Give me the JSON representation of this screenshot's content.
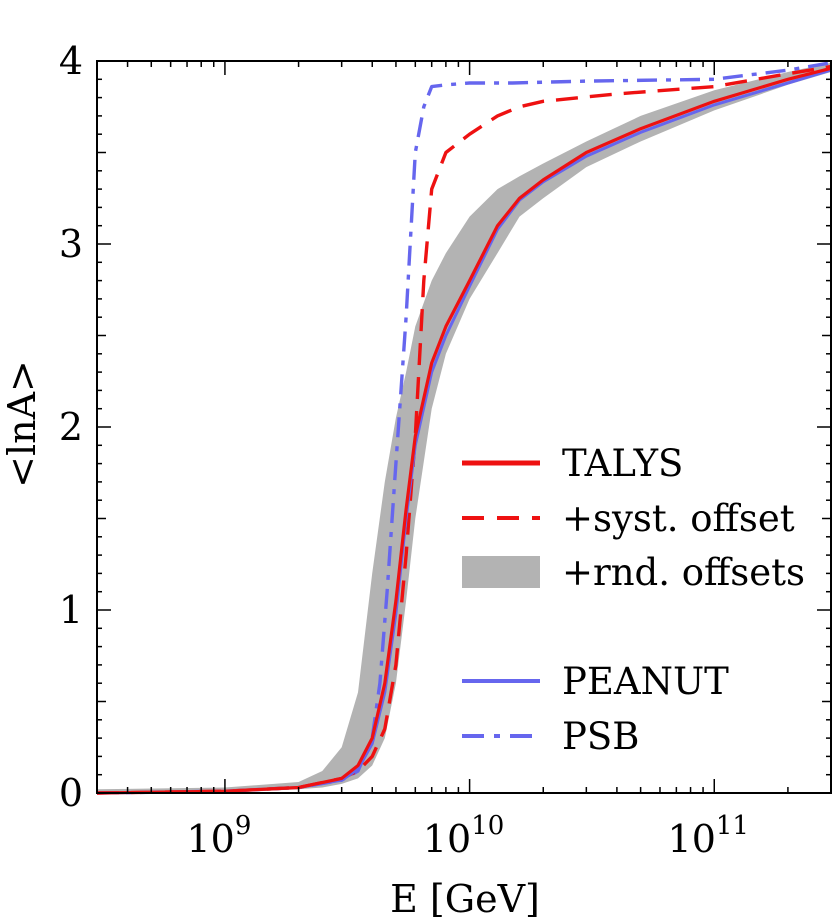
{
  "chart_data": {
    "type": "line",
    "xlabel": "E [GeV]",
    "ylabel": "<lnA>",
    "xscale": "log",
    "xlim": [
      300000000.0,
      300000000000.0
    ],
    "ylim": [
      0,
      4
    ],
    "x_ticks": [
      {
        "value": 1000000000.0,
        "base": "10",
        "exp": "9"
      },
      {
        "value": 10000000000.0,
        "base": "10",
        "exp": "10"
      },
      {
        "value": 100000000000.0,
        "base": "10",
        "exp": "11"
      }
    ],
    "y_ticks": [
      0,
      1,
      2,
      3,
      4
    ],
    "grid": false,
    "legend_position": "lower-right",
    "colors": {
      "red": "#ee1111",
      "blue": "#6666ee",
      "band": "#b3b3b3"
    },
    "series": [
      {
        "name": "TALYS",
        "style": "solid-thick",
        "color": "#ee1111",
        "x": [
          300000000.0,
          1000000000.0,
          2000000000.0,
          3000000000.0,
          3500000000.0,
          4000000000.0,
          4500000000.0,
          5000000000.0,
          5500000000.0,
          6000000000.0,
          7000000000.0,
          8000000000.0,
          10000000000.0,
          13000000000.0,
          16000000000.0,
          20000000000.0,
          30000000000.0,
          50000000000.0,
          100000000000.0,
          200000000000.0,
          300000000000.0
        ],
        "y": [
          0.0,
          0.01,
          0.03,
          0.08,
          0.15,
          0.3,
          0.6,
          1.05,
          1.55,
          1.95,
          2.35,
          2.55,
          2.8,
          3.1,
          3.25,
          3.35,
          3.5,
          3.63,
          3.78,
          3.9,
          3.96
        ]
      },
      {
        "name": "+syst. offset",
        "style": "dashed",
        "color": "#ee1111",
        "x": [
          300000000.0,
          1000000000.0,
          2000000000.0,
          3000000000.0,
          3500000000.0,
          4000000000.0,
          4500000000.0,
          5000000000.0,
          5500000000.0,
          6000000000.0,
          6500000000.0,
          7000000000.0,
          8000000000.0,
          10000000000.0,
          13000000000.0,
          16000000000.0,
          20000000000.0,
          40000000000.0,
          100000000000.0,
          200000000000.0,
          300000000000.0
        ],
        "y": [
          0.0,
          0.01,
          0.03,
          0.08,
          0.12,
          0.2,
          0.35,
          0.7,
          1.3,
          1.95,
          2.8,
          3.3,
          3.5,
          3.6,
          3.7,
          3.75,
          3.78,
          3.82,
          3.86,
          3.93,
          3.97
        ]
      },
      {
        "name": "+rnd. offsets",
        "style": "band",
        "color": "#b3b3b3",
        "x": [
          300000000.0,
          1000000000.0,
          2000000000.0,
          2500000000.0,
          3000000000.0,
          3500000000.0,
          4000000000.0,
          4500000000.0,
          5000000000.0,
          5500000000.0,
          6000000000.0,
          7000000000.0,
          8000000000.0,
          10000000000.0,
          13000000000.0,
          16000000000.0,
          20000000000.0,
          30000000000.0,
          50000000000.0,
          100000000000.0,
          200000000000.0,
          300000000000.0
        ],
        "low": [
          0.0,
          0.0,
          0.02,
          0.03,
          0.05,
          0.08,
          0.15,
          0.3,
          0.6,
          1.05,
          1.5,
          2.1,
          2.4,
          2.7,
          2.95,
          3.15,
          3.25,
          3.42,
          3.56,
          3.73,
          3.87,
          3.94
        ],
        "high": [
          0.02,
          0.03,
          0.06,
          0.12,
          0.25,
          0.55,
          1.2,
          1.7,
          2.05,
          2.3,
          2.55,
          2.8,
          2.95,
          3.15,
          3.3,
          3.37,
          3.44,
          3.56,
          3.7,
          3.84,
          3.94,
          3.99
        ]
      },
      {
        "name": "PEANUT",
        "style": "solid-thin",
        "color": "#6666ee",
        "x": [
          300000000.0,
          1000000000.0,
          2000000000.0,
          3000000000.0,
          3500000000.0,
          4000000000.0,
          4500000000.0,
          5000000000.0,
          5500000000.0,
          6000000000.0,
          7000000000.0,
          8000000000.0,
          10000000000.0,
          13000000000.0,
          16000000000.0,
          20000000000.0,
          30000000000.0,
          50000000000.0,
          100000000000.0,
          200000000000.0,
          300000000000.0
        ],
        "y": [
          0.0,
          0.01,
          0.03,
          0.07,
          0.13,
          0.27,
          0.55,
          0.98,
          1.5,
          1.9,
          2.3,
          2.5,
          2.77,
          3.08,
          3.24,
          3.34,
          3.48,
          3.61,
          3.76,
          3.88,
          3.95
        ]
      },
      {
        "name": "PSB",
        "style": "dash-dot",
        "color": "#6666ee",
        "x": [
          300000000.0,
          1000000000.0,
          2000000000.0,
          3000000000.0,
          3500000000.0,
          4000000000.0,
          4300000000.0,
          4600000000.0,
          5000000000.0,
          5500000000.0,
          6000000000.0,
          6500000000.0,
          7000000000.0,
          8000000000.0,
          10000000000.0,
          15000000000.0,
          30000000000.0,
          100000000000.0,
          200000000000.0,
          300000000000.0
        ],
        "y": [
          0.0,
          0.01,
          0.03,
          0.07,
          0.12,
          0.3,
          0.6,
          1.1,
          1.8,
          2.6,
          3.5,
          3.75,
          3.86,
          3.87,
          3.88,
          3.88,
          3.89,
          3.9,
          3.95,
          3.99
        ]
      }
    ]
  }
}
